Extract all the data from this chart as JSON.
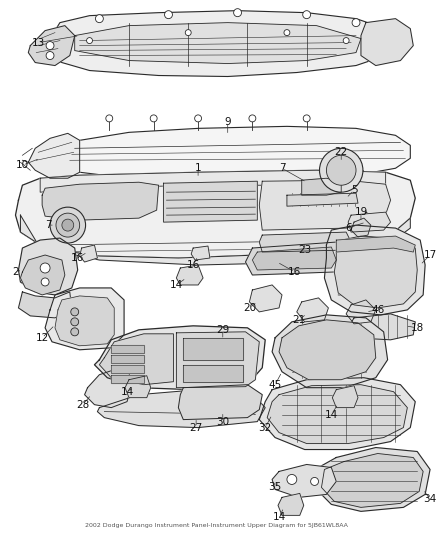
{
  "title": "2002 Dodge Durango Instrument Panel-Instrument Upper Diagram for 5JB61WL8AA",
  "background_color": "#ffffff",
  "fig_width": 4.38,
  "fig_height": 5.33,
  "dpi": 100,
  "line_color": "#2a2a2a",
  "light_fill": "#f2f2f2",
  "mid_fill": "#e0e0e0",
  "dark_fill": "#c8c8c8",
  "label_fontsize": 7.5,
  "leader_color": "#333333"
}
